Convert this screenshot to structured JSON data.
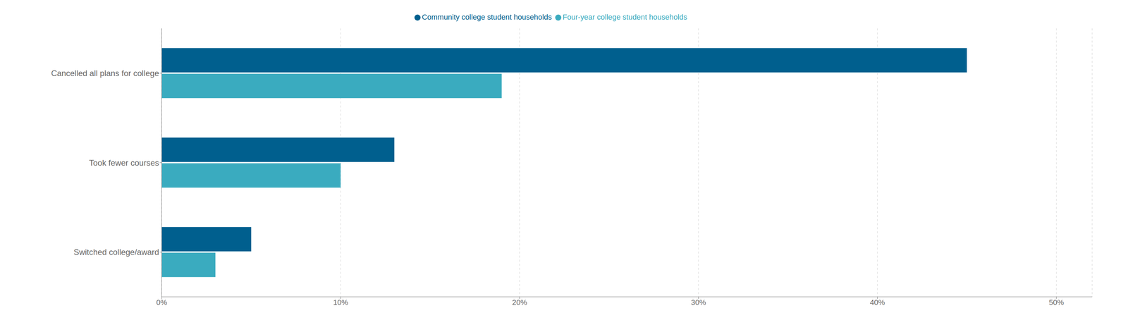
{
  "chart_data": {
    "type": "bar",
    "orientation": "horizontal",
    "categories": [
      "Cancelled all plans for college",
      "Took fewer courses",
      "Switched college/award"
    ],
    "series": [
      {
        "name": "Community college student households",
        "color": "#005f8e",
        "values": [
          0.45,
          0.13,
          0.05
        ]
      },
      {
        "name": "Four-year college student households",
        "color": "#3aabbf",
        "values": [
          0.19,
          0.1,
          0.03
        ]
      }
    ],
    "xlim": [
      0,
      0.52
    ],
    "xticks": [
      {
        "value": 0,
        "label": "0%"
      },
      {
        "value": 0.1,
        "label": "10%"
      },
      {
        "value": 0.2,
        "label": "20%"
      },
      {
        "value": 0.3,
        "label": "30%"
      },
      {
        "value": 0.4,
        "label": "40%"
      },
      {
        "value": 0.5,
        "label": "50%"
      }
    ],
    "grid": true,
    "legend": "top"
  }
}
